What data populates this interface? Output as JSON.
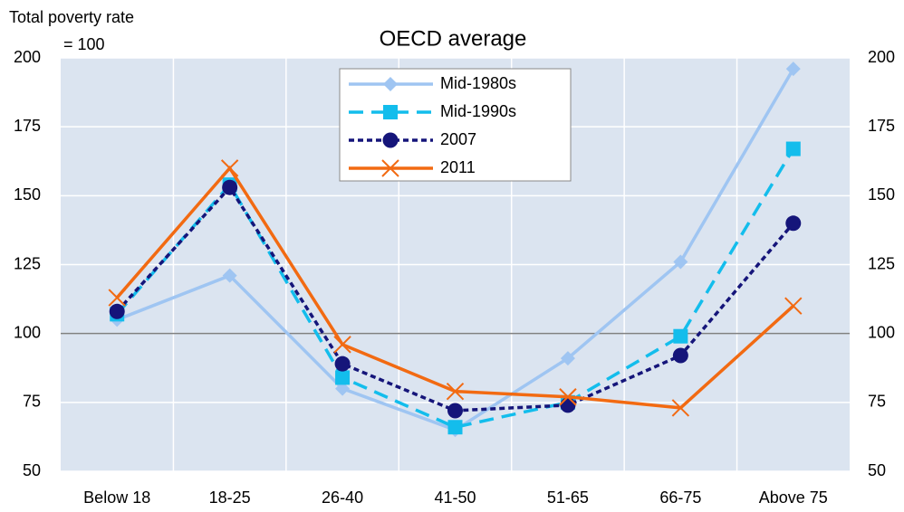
{
  "chart_data": {
    "type": "line",
    "title": "OECD average",
    "y_axis_label": [
      "Total poverty rate",
      "= 100"
    ],
    "categories": [
      "Below 18",
      "18-25",
      "26-40",
      "41-50",
      "51-65",
      "66-75",
      "Above 75"
    ],
    "series": [
      {
        "name": "Mid-1980s",
        "color": "#9fc5f2",
        "marker": "diamond",
        "dash": "solid",
        "values": [
          105,
          121,
          80,
          65,
          91,
          126,
          196
        ]
      },
      {
        "name": "Mid-1990s",
        "color": "#13bdec",
        "marker": "square",
        "dash": "dash",
        "values": [
          107,
          154,
          84,
          66,
          75,
          99,
          167
        ]
      },
      {
        "name": "2007",
        "color": "#15157a",
        "marker": "circle",
        "dash": "dot",
        "values": [
          108,
          153,
          89,
          72,
          74,
          92,
          140
        ]
      },
      {
        "name": "2011",
        "color": "#f26a12",
        "marker": "x",
        "dash": "solid",
        "values": [
          113,
          160,
          96,
          79,
          77,
          73,
          110
        ]
      }
    ],
    "ylim": [
      50,
      200
    ],
    "yticks": [
      50,
      75,
      100,
      125,
      150,
      175,
      200
    ],
    "y2lim": [
      50,
      200
    ],
    "y2ticks": [
      50,
      75,
      100,
      125,
      150,
      175,
      200
    ],
    "reference_line": 100,
    "grid": true
  }
}
